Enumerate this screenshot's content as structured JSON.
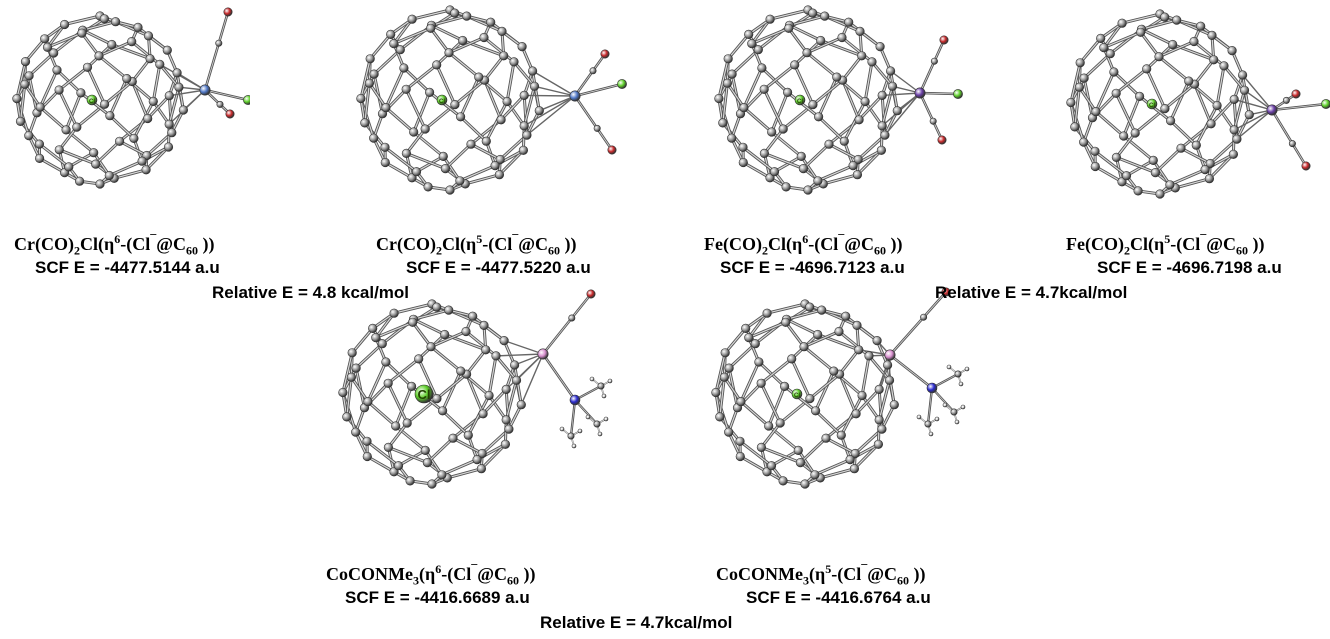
{
  "structures": [
    {
      "formula": {
        "pre": "Cr(CO)",
        "sub1": "2",
        "mid": "Cl(η",
        "hapt": "6",
        "ion": "-(Cl",
        "charge": "¯",
        "at": "@C",
        "sub2": "60",
        "post": " ))"
      },
      "scf": "SCF E = -4477.5144 a.u",
      "metal_color": "#4f78c8"
    },
    {
      "formula": {
        "pre": "Cr(CO)",
        "sub1": "2",
        "mid": "Cl(η",
        "hapt": "5",
        "ion": "-(Cl",
        "charge": "¯",
        "at": "@C",
        "sub2": "60",
        "post": " ))"
      },
      "scf": "SCF E = -4477.5220 a.u",
      "metal_color": "#4f78c8"
    },
    {
      "formula": {
        "pre": "Fe(CO)",
        "sub1": "2",
        "mid": "Cl(η",
        "hapt": "6",
        "ion": "-(Cl",
        "charge": "¯",
        "at": "@C",
        "sub2": "60",
        "post": " ))"
      },
      "scf": "SCF E = -4696.7123 a.u",
      "metal_color": "#6b3fa8"
    },
    {
      "formula": {
        "pre": "Fe(CO)",
        "sub1": "2",
        "mid": "Cl(η",
        "hapt": "5",
        "ion": "-(Cl",
        "charge": "¯",
        "at": "@C",
        "sub2": "60",
        "post": " ))"
      },
      "scf": "SCF E = -4696.7198 a.u",
      "metal_color": "#6b3fa8"
    },
    {
      "formula": {
        "pre": "CoCONMe",
        "sub1": "3",
        "mid": "(η",
        "hapt": "6",
        "ion": "-(Cl",
        "charge": "¯",
        "at": "@C",
        "sub2": "60",
        "post": " ))"
      },
      "scf": "SCF E = -4416.6689 a.u",
      "metal_color": "#d98fd0"
    },
    {
      "formula": {
        "pre": "CoCONMe",
        "sub1": "3",
        "mid": "(η",
        "hapt": "5",
        "ion": "-(Cl",
        "charge": "¯",
        "at": "@C",
        "sub2": "60",
        "post": " ))"
      },
      "scf": "SCF E = -4416.6764 a.u",
      "metal_color": "#d98fd0"
    }
  ],
  "relative": {
    "cr": "Relative E = 4.8 kcal/mol",
    "fe": "Relative E = 4.7kcal/mol",
    "co": "Relative E = 4.7kcal/mol"
  },
  "atoms": {
    "cl_label": "Cl",
    "carbon_color": "#9a9a9a",
    "oxygen_color": "#c8282a",
    "chlorine_color": "#5fd02a",
    "nitrogen_color": "#2a2ad0"
  }
}
